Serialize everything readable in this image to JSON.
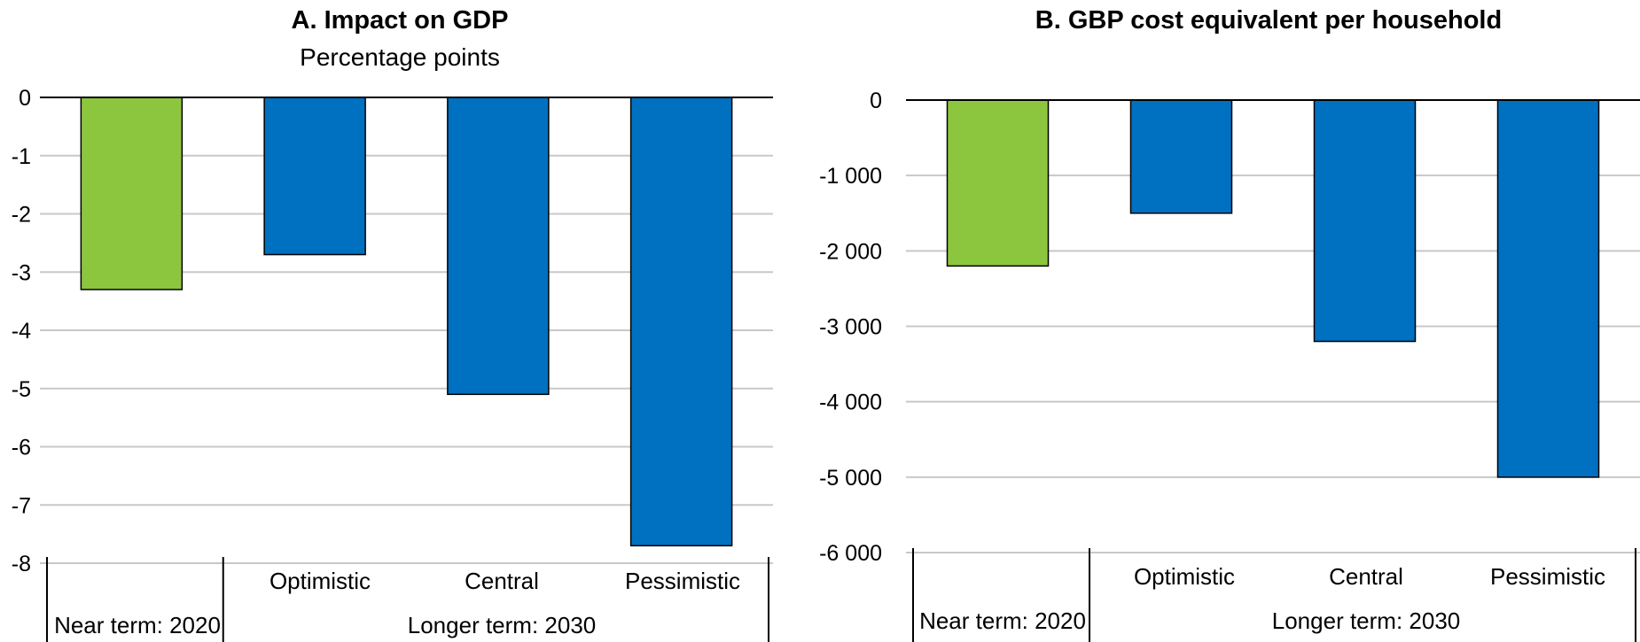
{
  "chart_data": [
    {
      "type": "bar",
      "title": "A. Impact on GDP",
      "subtitle": "Percentage points",
      "categories": [
        "Near term: 2020",
        "Optimistic",
        "Central",
        "Pessimistic"
      ],
      "group_labels": [
        "Near term: 2020",
        "Longer term: 2030"
      ],
      "values": [
        -3.3,
        -2.7,
        -5.1,
        -7.7
      ],
      "bar_colors": [
        "#8cc63f",
        "#0070c0",
        "#0070c0",
        "#0070c0"
      ],
      "ylim": [
        -8,
        0
      ],
      "yticks": [
        0,
        -1,
        -2,
        -3,
        -4,
        -5,
        -6,
        -7,
        -8
      ],
      "ytick_labels": [
        "0",
        "-1",
        "-2",
        "-3",
        "-4",
        "-5",
        "-6",
        "-7",
        "-8"
      ],
      "grid": true,
      "xlabel": "",
      "ylabel": ""
    },
    {
      "type": "bar",
      "title": "B. GBP cost equivalent per household",
      "subtitle": "",
      "categories": [
        "Near term: 2020",
        "Optimistic",
        "Central",
        "Pessimistic"
      ],
      "group_labels": [
        "Near term: 2020",
        "Longer term: 2030"
      ],
      "values": [
        -2200,
        -1500,
        -3200,
        -5000
      ],
      "bar_colors": [
        "#8cc63f",
        "#0070c0",
        "#0070c0",
        "#0070c0"
      ],
      "ylim": [
        -6000,
        0
      ],
      "yticks": [
        0,
        -1000,
        -2000,
        -3000,
        -4000,
        -5000,
        -6000
      ],
      "ytick_labels": [
        "0",
        "-1 000",
        "-2 000",
        "-3 000",
        "-4 000",
        "-5 000",
        "-6 000"
      ],
      "grid": true,
      "xlabel": "",
      "ylabel": ""
    }
  ]
}
